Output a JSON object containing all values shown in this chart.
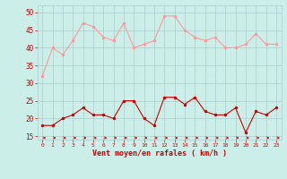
{
  "hours": [
    0,
    1,
    2,
    3,
    4,
    5,
    6,
    7,
    8,
    9,
    10,
    11,
    12,
    13,
    14,
    15,
    16,
    17,
    18,
    19,
    20,
    21,
    22,
    23
  ],
  "rafales": [
    32,
    40,
    38,
    42,
    47,
    46,
    43,
    42,
    47,
    40,
    41,
    42,
    49,
    49,
    45,
    43,
    42,
    43,
    40,
    40,
    41,
    44,
    41,
    41
  ],
  "moyen": [
    18,
    18,
    20,
    21,
    23,
    21,
    21,
    20,
    25,
    25,
    20,
    18,
    26,
    26,
    24,
    26,
    22,
    21,
    21,
    23,
    16,
    22,
    21,
    23
  ],
  "line_color_rafales": "#ff9999",
  "line_color_moyen": "#cc0000",
  "bg_color": "#cceee8",
  "grid_color": "#aacccc",
  "xlabel": "Vent moyen/en rafales ( km/h )",
  "xlabel_color": "#cc0000",
  "tick_color": "#cc0000",
  "ylim": [
    14,
    52
  ],
  "yticks": [
    15,
    20,
    25,
    30,
    35,
    40,
    45,
    50
  ]
}
